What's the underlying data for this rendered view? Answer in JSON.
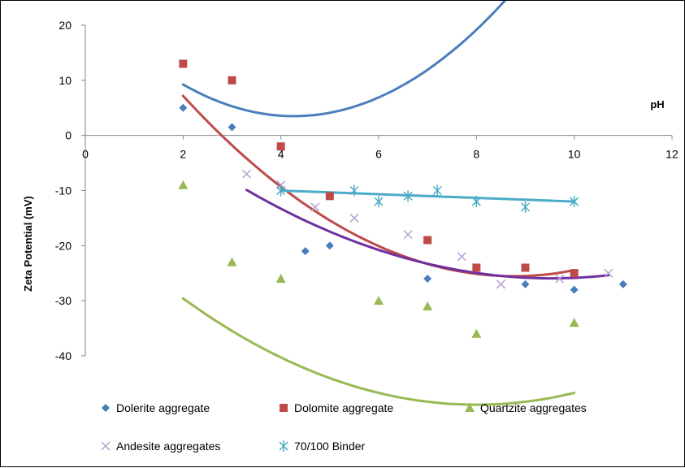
{
  "chart_data": {
    "type": "scatter",
    "title": "",
    "xlabel": "pH",
    "ylabel": "Zeta Potential (mV)",
    "xlim": [
      0,
      12
    ],
    "ylim": [
      -40,
      20
    ],
    "xticks": [
      "0",
      "2",
      "4",
      "6",
      "8",
      "10",
      "12"
    ],
    "yticks": [
      "20",
      "10",
      "0",
      "-10",
      "-20",
      "-30",
      "-40"
    ],
    "grid": false,
    "legend_position": "bottom",
    "series": [
      {
        "name": "Dolerite aggregate",
        "marker": "diamond",
        "color": "#4a7ebb",
        "x": [
          2,
          3,
          5,
          4.5,
          7,
          9,
          10,
          11
        ],
        "y": [
          5,
          1.5,
          -20,
          -21,
          -26,
          -27,
          -28,
          -27
        ],
        "trend": {
          "x0": 2,
          "x1": 10.9,
          "coeffs": [
            1.1227,
            -9.5725,
            23.9016
          ]
        }
      },
      {
        "name": "Dolomite aggregate",
        "marker": "square",
        "color": "#be4b48",
        "x": [
          2,
          3,
          4,
          5,
          7,
          8,
          9,
          10
        ],
        "y": [
          13,
          10,
          -2,
          -11,
          -19,
          -24,
          -24,
          -25
        ],
        "trend": {
          "x0": 2,
          "x1": 10,
          "coeffs": [
            0.7154,
            -12.5389,
            29.3968
          ]
        }
      },
      {
        "name": "Quartzite aggregates",
        "marker": "triangle",
        "color": "#98b954",
        "x": [
          2,
          3,
          4,
          6,
          7,
          8,
          10
        ],
        "y": [
          -9,
          -23,
          -26,
          -30,
          -31,
          -36,
          -34
        ],
        "trend": {
          "x0": 2,
          "x1": 10,
          "coeffs": [
            0.5357,
            -8.5714,
            -14.5714
          ]
        }
      },
      {
        "name": "Andesite aggregates",
        "marker": "x",
        "color": "#b4a0d0",
        "x": [
          3.3,
          4,
          4.7,
          5.5,
          6.6,
          7.7,
          8.5,
          9.7,
          10.7
        ],
        "y": [
          -7,
          -9,
          -13,
          -15,
          -18,
          -22,
          -27,
          -26,
          -25
        ],
        "trend": {
          "x0": 3.3,
          "x1": 10.7,
          "coeffs": [
            0.4122,
            -7.8617,
            11.5548
          ]
        },
        "trend_color": "#7030a0"
      },
      {
        "name": "70/100 Binder",
        "marker": "asterisk",
        "color": "#4bacc6",
        "x": [
          4,
          5.5,
          6,
          6.6,
          7.2,
          8,
          9,
          10
        ],
        "y": [
          -10,
          -10,
          -12,
          -11,
          -10,
          -12,
          -13,
          -12
        ],
        "trend": {
          "x0": 4,
          "x1": 10,
          "coeffs": [
            0,
            -0.3333,
            -8.6667
          ]
        }
      }
    ]
  }
}
